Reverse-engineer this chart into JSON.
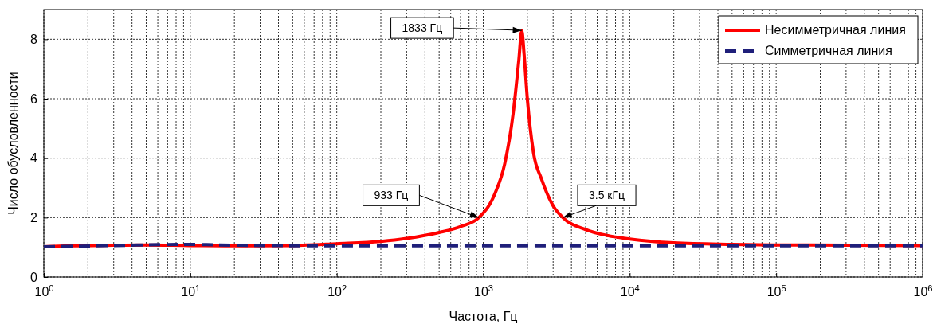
{
  "chart_data": {
    "type": "line",
    "xlabel": "Частота, Гц",
    "ylabel": "Число обусловленности",
    "log": "x",
    "xlim": [
      1,
      1000000
    ],
    "xticks": [
      {
        "value": 1,
        "label": "10$^{0}$"
      },
      {
        "value": 10,
        "label": "10$^{1}$"
      },
      {
        "value": 100,
        "label": "10$^{2}$"
      },
      {
        "value": 1000,
        "label": "10$^{3}$"
      },
      {
        "value": 10000,
        "label": "10$^{4}$"
      },
      {
        "value": 100000,
        "label": "10$^{5}$"
      },
      {
        "value": 1000000,
        "label": "10$^{6}$"
      }
    ],
    "ylim": [
      0,
      9
    ],
    "yticks": [
      0,
      2,
      4,
      6,
      8
    ],
    "grid": true,
    "legend": "top right",
    "series": [
      {
        "name": "Несимметричная линия",
        "color": "#ff0000",
        "line_style": "solid",
        "x": [
          1,
          1.5,
          3,
          5,
          10,
          20,
          50,
          100,
          200,
          300,
          500,
          700,
          933,
          1200,
          1400,
          1600,
          1750,
          1833,
          1900,
          2000,
          2200,
          2500,
          3000,
          3500,
          5000,
          7000,
          10000,
          20000,
          50000,
          100000,
          1000000
        ],
        "values": [
          1.02,
          1.05,
          1.07,
          1.08,
          1.06,
          1.05,
          1.06,
          1.12,
          1.2,
          1.3,
          1.5,
          1.7,
          2,
          2.8,
          3.8,
          5.5,
          7.3,
          8.3,
          7.5,
          6,
          4.2,
          3.3,
          2.4,
          2,
          1.6,
          1.4,
          1.28,
          1.15,
          1.1,
          1.08,
          1.06
        ]
      },
      {
        "name": "Симметричная линия",
        "color": "#1f1f7a",
        "line_style": "dashed",
        "x": [
          1,
          3,
          10,
          15,
          30,
          100,
          1000,
          1000000
        ],
        "values": [
          1.02,
          1.06,
          1.1,
          1.08,
          1.06,
          1.05,
          1.05,
          1.05
        ]
      }
    ],
    "annotations": [
      {
        "text": "1833 Гц",
        "x": 1833,
        "y": 8.3
      },
      {
        "text": "933 Гц",
        "x": 933,
        "y": 2
      },
      {
        "text": "3.5 кГц",
        "x": 3500,
        "y": 2
      }
    ]
  }
}
